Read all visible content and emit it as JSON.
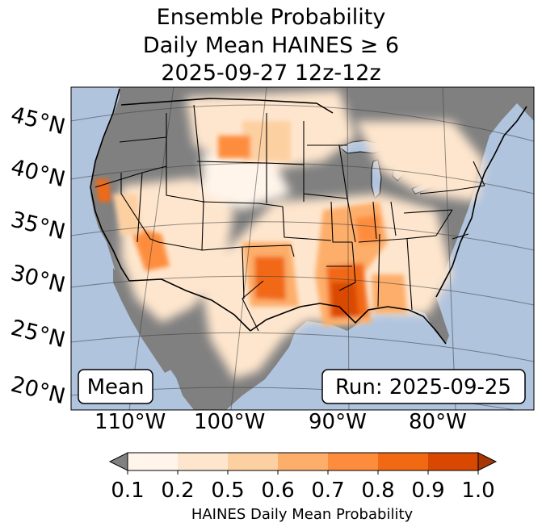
{
  "title": {
    "line1": "Ensemble Probability",
    "line2": "Daily Mean HAINES ≥ 6",
    "line3": "2025-09-27 12z-12z"
  },
  "map": {
    "lat_labels": [
      "45°N",
      "40°N",
      "35°N",
      "30°N",
      "25°N",
      "20°N"
    ],
    "lon_labels": [
      "110°W",
      "100°W",
      "90°W",
      "80°W"
    ],
    "stat_label": "Mean",
    "run_label": "Run: 2025-09-25",
    "colors": {
      "ocean": "#b0c4de",
      "masked_land": "#808080",
      "low": "#fff5eb",
      "mid_low": "#fee6ce",
      "mid": "#fdd0a2",
      "mid_high": "#fdae6b",
      "high": "#fd8d3c",
      "very_high": "#f16913",
      "extreme": "#d94801"
    }
  },
  "colorbar": {
    "ticks": [
      "0.1",
      "0.2",
      "0.5",
      "0.6",
      "0.7",
      "0.8",
      "0.9",
      "1.0"
    ],
    "colors": [
      "#fff5eb",
      "#fee6ce",
      "#fdd0a2",
      "#fdae6b",
      "#fd8d3c",
      "#f16913",
      "#d94801"
    ],
    "under_color": "#808080",
    "over_color": "#a63603",
    "label": "HAINES Daily Mean Probability"
  }
}
